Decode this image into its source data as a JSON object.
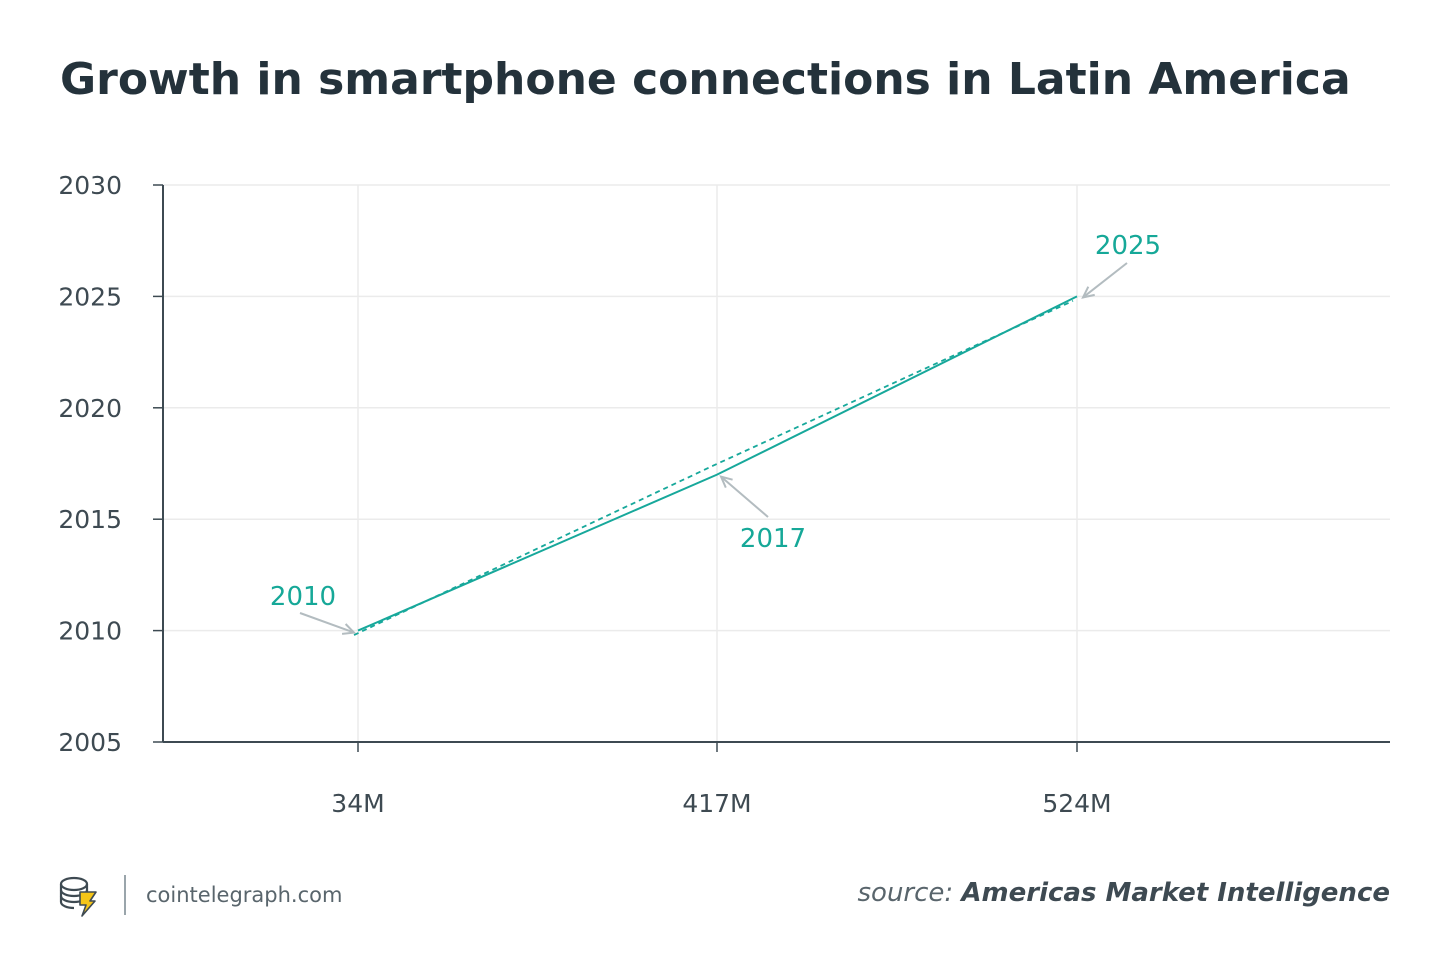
{
  "title": "Growth in smartphone connections in Latin America",
  "colors": {
    "line": "#17a89b",
    "annotation": "#16a898",
    "arrow": "#b3bcc0",
    "axis": "#3d4a52",
    "grid": "#ebebeb",
    "text": "#3e4a52"
  },
  "chart_data": {
    "type": "line",
    "title": "Growth in smartphone connections in Latin America",
    "categories": [
      "34M",
      "417M",
      "524M"
    ],
    "values": [
      2010,
      2017,
      2025
    ],
    "trend_values": [
      2009.8,
      2017.4,
      2024.8
    ],
    "ylim": [
      2005,
      2030
    ],
    "yticks": [
      "2005",
      "2010",
      "2015",
      "2020",
      "2025",
      "2030"
    ],
    "annotations": [
      {
        "label": "2010",
        "category": "34M",
        "value": 2010
      },
      {
        "label": "2017",
        "category": "417M",
        "value": 2017
      },
      {
        "label": "2025",
        "category": "524M",
        "value": 2025
      }
    ],
    "grid": true,
    "xlabel": "",
    "ylabel": ""
  },
  "footer": {
    "logo_icon": "cointelegraph-logo-icon",
    "site": "cointelegraph.com",
    "source_prefix": "source:",
    "source_name": "Americas Market Intelligence"
  }
}
